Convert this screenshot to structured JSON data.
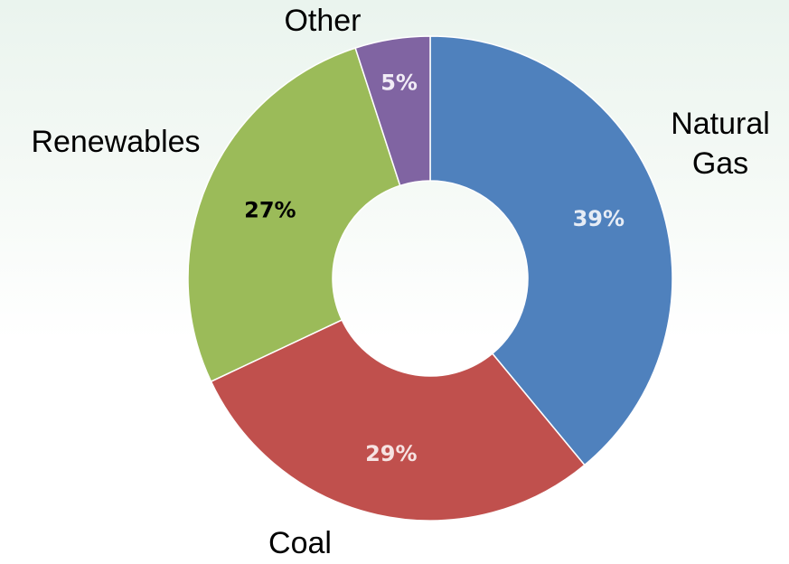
{
  "chart_data": {
    "type": "pie",
    "variant": "donut",
    "title": "",
    "slices": [
      {
        "label": "Natural Gas",
        "label_lines": [
          "Natural",
          "Gas"
        ],
        "value": 39,
        "display": "39%",
        "color": "#4f81bd",
        "value_text_color": "#e6ecf5"
      },
      {
        "label": "Coal",
        "label_lines": [
          "Coal"
        ],
        "value": 29,
        "display": "29%",
        "color": "#c0504d",
        "value_text_color": "#f6e3e2"
      },
      {
        "label": "Renewables",
        "label_lines": [
          "Renewables"
        ],
        "value": 27,
        "display": "27%",
        "color": "#9bbb59",
        "value_text_color": "#000000"
      },
      {
        "label": "Other",
        "label_lines": [
          "Other"
        ],
        "value": 5,
        "display": "5%",
        "color": "#8064a2",
        "value_text_color": "#f1ecf6"
      }
    ],
    "legend": "none"
  }
}
